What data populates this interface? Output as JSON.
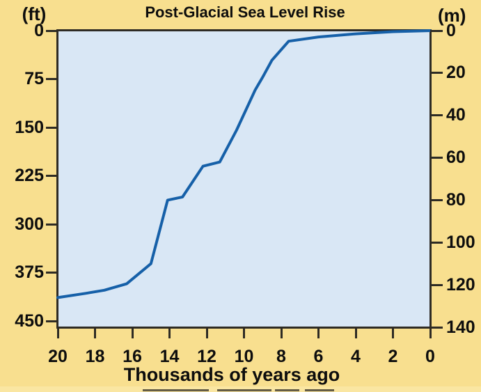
{
  "figure": {
    "title": "Post-Glacial Sea Level Rise",
    "left_axis_unit": "(ft)",
    "right_axis_unit": "(m)",
    "x_axis_title": "Thousands of years ago"
  },
  "chart_data": {
    "type": "line",
    "title": "Post-Glacial Sea Level Rise",
    "xlabel": "Thousands of years ago",
    "x_axis": {
      "ticks_kyr_ago": [
        20,
        18,
        16,
        14,
        12,
        10,
        8,
        6,
        4,
        2,
        0
      ],
      "range_kyr_ago": [
        20,
        0
      ],
      "direction": "reversed, 20 thousand years ago at left, present (0) at right"
    },
    "left_axis": {
      "unit": "(ft)",
      "ticks_ft": [
        0,
        75,
        150,
        225,
        300,
        375,
        450
      ],
      "meaning": "feet below present sea level, 0 at top increasing downward"
    },
    "right_axis": {
      "unit": "(m)",
      "ticks_m": [
        0,
        20,
        40,
        60,
        80,
        100,
        120,
        140
      ],
      "meaning": "meters below present sea level, 0 at top increasing downward"
    },
    "ylim_m_relative_to_present": [
      -140,
      0
    ],
    "series": [
      {
        "name": "sea level relative to present (meters)",
        "points_kyr_vs_m": [
          [
            20,
            -126
          ],
          [
            18.5,
            -124
          ],
          [
            17.5,
            -122.5
          ],
          [
            16.3,
            -119.5
          ],
          [
            15,
            -110
          ],
          [
            14.1,
            -80
          ],
          [
            13.3,
            -78.5
          ],
          [
            12.2,
            -64
          ],
          [
            11.3,
            -62
          ],
          [
            10.4,
            -47
          ],
          [
            9.4,
            -28
          ],
          [
            9,
            -22
          ],
          [
            8.5,
            -14
          ],
          [
            7.6,
            -5
          ],
          [
            6,
            -3
          ],
          [
            4,
            -1.5
          ],
          [
            2,
            -0.5
          ],
          [
            0,
            0
          ]
        ]
      }
    ],
    "grid": false,
    "legend": false,
    "colors": {
      "line": "#1660A8",
      "plot_background": "#D9E7F5",
      "page_background": "#F8DF8F",
      "axis_and_ticks": "#2E2B24",
      "text": "#0D0D0D"
    }
  }
}
